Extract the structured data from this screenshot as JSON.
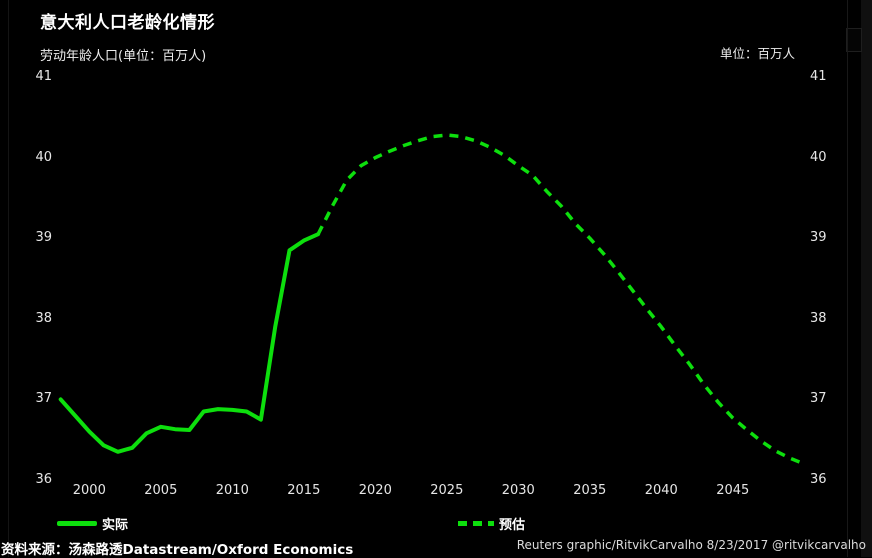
{
  "header": {
    "title": "意大利人口老龄化情形",
    "subtitle": "劳动年龄人口(单位：百万人)",
    "unit_label": "单位：百万人"
  },
  "legend": {
    "actual_label": "实际",
    "forecast_label": "预估"
  },
  "footer": {
    "source": "资料来源：汤森路透Datastream/Oxford Economics",
    "credit": "Reuters graphic/RitvikCarvalho 8/23/2017  @ritvikcarvalho"
  },
  "colors": {
    "background": "#000000",
    "line_green": "#0ddf0d",
    "axis_text": "#e6e6e6",
    "title_text": "#ffffff"
  },
  "chart_data": {
    "type": "line",
    "title": "意大利人口老龄化情形",
    "subtitle": "劳动年龄人口(单位：百万人)",
    "unit": "百万人",
    "xlabel": "",
    "ylabel": "劳动年龄人口(单位：百万人)",
    "xlim": [
      1997.6,
      2050.4
    ],
    "ylim": [
      36,
      41
    ],
    "x_ticks": [
      2000,
      2005,
      2010,
      2015,
      2020,
      2025,
      2030,
      2035,
      2040,
      2045
    ],
    "y_ticks": [
      36,
      37,
      38,
      39,
      40,
      41
    ],
    "grid": false,
    "legend_position": "bottom",
    "series": [
      {
        "name": "实际",
        "style": "solid",
        "x": [
          1998,
          1999,
          2000,
          2001,
          2002,
          2003,
          2004,
          2005,
          2006,
          2007,
          2008,
          2009,
          2010,
          2011,
          2012,
          2013,
          2014,
          2015,
          2016
        ],
        "values": [
          37.0,
          36.8,
          36.6,
          36.43,
          36.35,
          36.4,
          36.58,
          36.66,
          36.63,
          36.62,
          36.85,
          36.88,
          36.87,
          36.85,
          36.75,
          37.9,
          38.85,
          38.97,
          39.05
        ]
      },
      {
        "name": "预估",
        "style": "dashed",
        "x": [
          2016,
          2017,
          2018,
          2019,
          2020,
          2021,
          2022,
          2023,
          2024,
          2025,
          2026,
          2027,
          2028,
          2029,
          2030,
          2031,
          2032,
          2033,
          2034,
          2035,
          2036,
          2037,
          2038,
          2039,
          2040,
          2041,
          2042,
          2043,
          2044,
          2045,
          2046,
          2047,
          2048,
          2049,
          2050
        ],
        "values": [
          39.05,
          39.4,
          39.72,
          39.9,
          40.0,
          40.08,
          40.15,
          40.21,
          40.26,
          40.28,
          40.26,
          40.21,
          40.13,
          40.03,
          39.9,
          39.78,
          39.58,
          39.4,
          39.18,
          39.0,
          38.8,
          38.58,
          38.35,
          38.12,
          37.9,
          37.66,
          37.43,
          37.18,
          36.96,
          36.77,
          36.62,
          36.48,
          36.36,
          36.27,
          36.2
        ]
      }
    ]
  }
}
